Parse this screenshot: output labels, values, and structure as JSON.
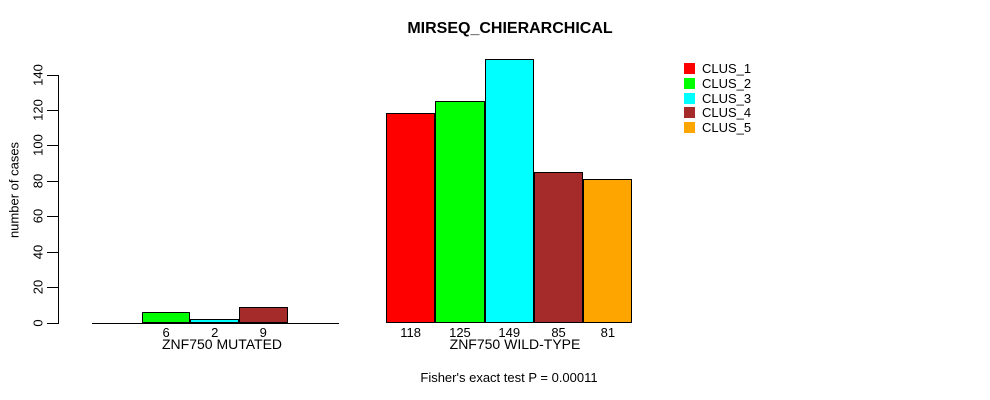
{
  "chart": {
    "title": "MIRSEQ_CHIERARCHICAL",
    "ylabel": "number of cases",
    "footnote": "Fisher's exact test P = 0.00011"
  },
  "chart_data": {
    "type": "bar",
    "title": "MIRSEQ_CHIERARCHICAL",
    "xlabel": "",
    "ylabel": "number of cases",
    "ylim": [
      0,
      150
    ],
    "yticks": [
      0,
      20,
      40,
      60,
      80,
      100,
      120,
      140
    ],
    "grid": false,
    "legend_position": "top-right",
    "legend": [
      {
        "label": "CLUS_1",
        "color": "#FF0000"
      },
      {
        "label": "CLUS_2",
        "color": "#00FF00"
      },
      {
        "label": "CLUS_3",
        "color": "#00FFFF"
      },
      {
        "label": "CLUS_4",
        "color": "#A52A2A"
      },
      {
        "label": "CLUS_5",
        "color": "#FFA500"
      }
    ],
    "categories": [
      "CLUS_1",
      "CLUS_2",
      "CLUS_3",
      "CLUS_4",
      "CLUS_5"
    ],
    "groups": [
      {
        "label": "ZNF750 MUTATED",
        "values": [
          0,
          6,
          2,
          9,
          0
        ],
        "bar_labels": [
          "",
          "6",
          "2",
          "9",
          ""
        ]
      },
      {
        "label": "ZNF750 WILD-TYPE",
        "values": [
          118,
          125,
          149,
          85,
          81
        ],
        "bar_labels": [
          "118",
          "125",
          "149",
          "85",
          "81"
        ]
      }
    ],
    "annotation": "Fisher's exact test P = 0.00011",
    "axis_color": "#000000",
    "bar_border_color": "#000000"
  }
}
